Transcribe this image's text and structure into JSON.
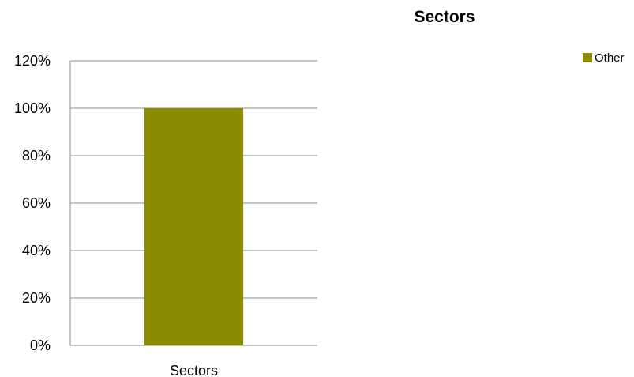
{
  "chart_data": {
    "type": "bar",
    "title": "Sectors",
    "categories": [
      "Sectors"
    ],
    "series": [
      {
        "name": "Other",
        "values": [
          100
        ],
        "color": "#8b8b00"
      }
    ],
    "y_unit": "%",
    "ylim": [
      0,
      120
    ],
    "y_ticks": [
      0,
      20,
      40,
      60,
      80,
      100,
      120
    ],
    "y_tick_labels": [
      "0%",
      "20%",
      "40%",
      "60%",
      "80%",
      "100%",
      "120%"
    ],
    "grid": true,
    "legend_position": "top-right"
  }
}
